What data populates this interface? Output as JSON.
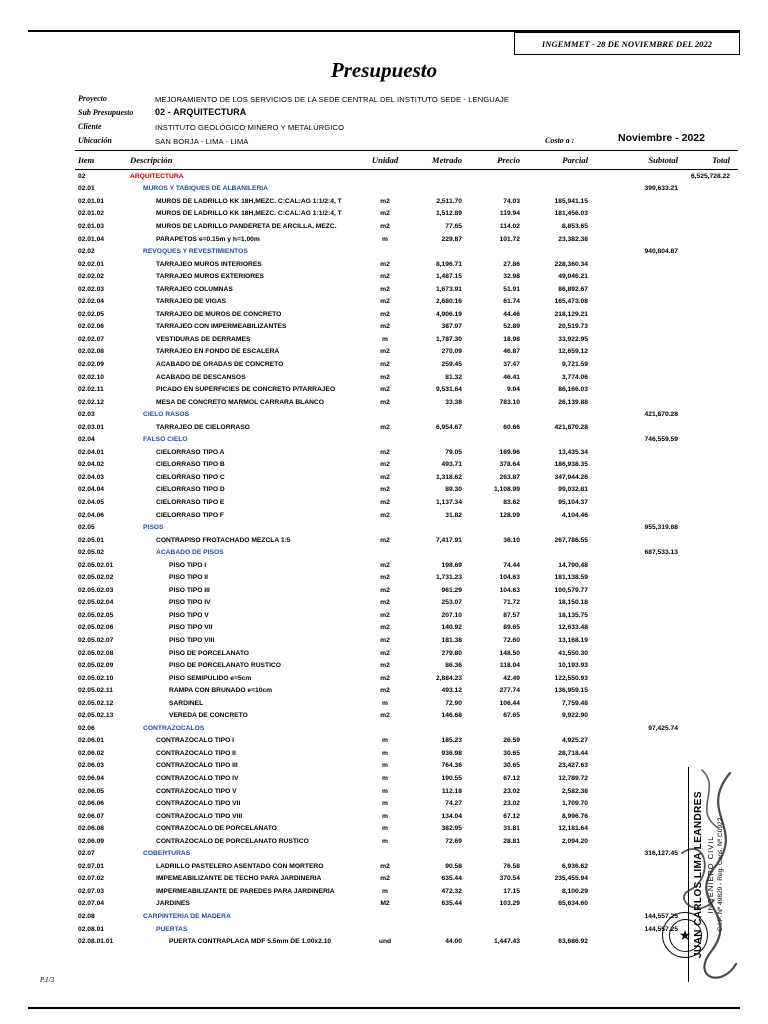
{
  "colors": {
    "red": "#c00000",
    "blue": "#1f4e9c"
  },
  "page": {
    "header_right": "INGEMMET - 28 DE NOVIEMBRE DEL 2022",
    "title": "Presupuesto",
    "footer_page": "P.1/3"
  },
  "meta": {
    "labels": {
      "proyecto": "Proyecto",
      "sub": "Sub Presupuesto",
      "cliente": "Cliente",
      "ubicacion": "Ubicación",
      "costo": "Costo a :"
    },
    "proyecto": "MEJORAMIENTO DE LOS SERVICIOS DE LA SEDE CENTRAL DEL INSTITUTO SEDE - LENGUAJE",
    "sub_presupuesto": "02 - ARQUITECTURA",
    "cliente": "INSTITUTO GEOLÓGICO MINERO Y METALÚRGICO",
    "ubicacion": "SAN BORJA - LIMA - LIMA",
    "costo_valor": "Noviembre - 2022"
  },
  "stamp": {
    "name": "JUAN CARLOS LIMA LEANDRES",
    "title": "INGENIERO CIVIL",
    "reg": "C.I.P. Nº 49829 - Reg. Cons. Nº C0922",
    "seal_star": "★"
  },
  "table": {
    "headers": [
      "Item",
      "Descripción",
      "Unidad",
      "Metrado",
      "Precio",
      "Parcial",
      "Subtotal",
      "Total"
    ],
    "rows": [
      {
        "item": "02",
        "desc": "ARQUITECTURA",
        "t": "t",
        "tot": "6,525,728.22"
      },
      {
        "item": "02.01",
        "desc": "MUROS Y TABIQUES DE ALBAÑILERIA",
        "t": "s",
        "sub": "399,633.21"
      },
      {
        "item": "02.01.01",
        "desc": "MUROS DE LADRILLO KK 18H,MEZC. C:CAL:AG 1:1/2:4, T",
        "und": "m2",
        "met": "2,511.70",
        "pre": "74.03",
        "par": "185,941.15",
        "t": "i"
      },
      {
        "item": "02.01.02",
        "desc": "MUROS DE LADRILLO KK 18H,MEZC. C:CAL:AG 1:1/2:4, T",
        "und": "m2",
        "met": "1,512.89",
        "pre": "119.94",
        "par": "181,456.03",
        "t": "i"
      },
      {
        "item": "02.01.03",
        "desc": "MUROS DE LADRILLO PANDERETA DE ARCILLA, MEZC.",
        "und": "m2",
        "met": "77.65",
        "pre": "114.02",
        "par": "8,853.65",
        "t": "i"
      },
      {
        "item": "02.01.04",
        "desc": "PARAPETOS e=0.15m y h=1.00m",
        "und": "m",
        "met": "229.87",
        "pre": "101.72",
        "par": "23,382.38",
        "t": "i"
      },
      {
        "item": "02.02",
        "desc": "REVOQUES Y REVESTIMIENTOS",
        "t": "s",
        "sub": "940,804.87"
      },
      {
        "item": "02.02.01",
        "desc": "TARRAJEO MUROS INTERIORES",
        "und": "m2",
        "met": "8,196.71",
        "pre": "27.86",
        "par": "228,360.34",
        "t": "i"
      },
      {
        "item": "02.02.02",
        "desc": "TARRAJEO MUROS EXTERIORES",
        "und": "m2",
        "met": "1,487.15",
        "pre": "32.98",
        "par": "49,046.21",
        "t": "i"
      },
      {
        "item": "02.02.03",
        "desc": "TARRAJEO COLUMNAS",
        "und": "m2",
        "met": "1,673.91",
        "pre": "51.91",
        "par": "86,892.67",
        "t": "i"
      },
      {
        "item": "02.02.04",
        "desc": "TARRAJEO DE VIGAS",
        "und": "m2",
        "met": "2,680.16",
        "pre": "61.74",
        "par": "165,473.08",
        "t": "i"
      },
      {
        "item": "02.02.05",
        "desc": "TARRAJEO DE MUROS DE CONCRETO",
        "und": "m2",
        "met": "4,906.19",
        "pre": "44.46",
        "par": "218,129.21",
        "t": "i"
      },
      {
        "item": "02.02.06",
        "desc": "TARRAJEO CON IMPERMEABILIZANTES",
        "und": "m2",
        "met": "387.97",
        "pre": "52.89",
        "par": "20,519.73",
        "t": "i"
      },
      {
        "item": "02.02.07",
        "desc": "VESTIDURAS DE DERRAMES",
        "und": "m",
        "met": "1,787.30",
        "pre": "18.98",
        "par": "33,922.95",
        "t": "i"
      },
      {
        "item": "02.02.08",
        "desc": "TARRAJEO EN FONDO DE ESCALERA",
        "und": "m2",
        "met": "270.09",
        "pre": "46.87",
        "par": "12,659.12",
        "t": "i"
      },
      {
        "item": "02.02.09",
        "desc": "ACABADO DE GRADAS DE CONCRETO",
        "und": "m2",
        "met": "259.45",
        "pre": "37.47",
        "par": "9,721.59",
        "t": "i"
      },
      {
        "item": "02.02.10",
        "desc": "ACABADO DE DESCANSOS",
        "und": "m2",
        "met": "81.32",
        "pre": "46.41",
        "par": "3,774.06",
        "t": "i"
      },
      {
        "item": "02.02.11",
        "desc": "PICADO EN SUPERFICIES DE CONCRETO P/TARRAJEO",
        "und": "m2",
        "met": "9,531.64",
        "pre": "9.04",
        "par": "86,166.03",
        "t": "i"
      },
      {
        "item": "02.02.12",
        "desc": "MESA DE CONCRETO MARMOL CARRARA BLANCO",
        "und": "m2",
        "met": "33.38",
        "pre": "783.10",
        "par": "26,139.88",
        "t": "i"
      },
      {
        "item": "02.03",
        "desc": "CIELO RASOS",
        "t": "s",
        "sub": "421,870.28"
      },
      {
        "item": "02.03.01",
        "desc": "TARRAJEO DE CIELORRASO",
        "und": "m2",
        "met": "6,954.67",
        "pre": "60.66",
        "par": "421,870.28",
        "t": "i"
      },
      {
        "item": "02.04",
        "desc": "FALSO CIELO",
        "t": "s",
        "sub": "746,559.59"
      },
      {
        "item": "02.04.01",
        "desc": "CIELORRASO TIPO A",
        "und": "m2",
        "met": "79.05",
        "pre": "169.96",
        "par": "13,435.34",
        "t": "i"
      },
      {
        "item": "02.04.02",
        "desc": "CIELORRASO TIPO B",
        "und": "m2",
        "met": "493.71",
        "pre": "378.64",
        "par": "186,938.35",
        "t": "i"
      },
      {
        "item": "02.04.03",
        "desc": "CIELORRASO TIPO C",
        "und": "m2",
        "met": "1,318.62",
        "pre": "263.87",
        "par": "347,944.26",
        "t": "i"
      },
      {
        "item": "02.04.04",
        "desc": "CIELORRASO TIPO D",
        "und": "m2",
        "met": "89.30",
        "pre": "1,108.99",
        "par": "99,032.81",
        "t": "i"
      },
      {
        "item": "02.04.05",
        "desc": "CIELORRASO TIPO E",
        "und": "m2",
        "met": "1,137.34",
        "pre": "83.62",
        "par": "95,104.37",
        "t": "i"
      },
      {
        "item": "02.04.06",
        "desc": "CIELORRASO TIPO F",
        "und": "m2",
        "met": "31.82",
        "pre": "128.99",
        "par": "4,104.46",
        "t": "i"
      },
      {
        "item": "02.05",
        "desc": "PISOS",
        "t": "s",
        "sub": "955,319.68"
      },
      {
        "item": "02.05.01",
        "desc": "CONTRAPISO FROTACHADO MEZCLA 1:5",
        "und": "m2",
        "met": "7,417.91",
        "pre": "36.10",
        "par": "267,786.55",
        "t": "i"
      },
      {
        "item": "02.05.02",
        "desc": "ACABADO DE PISOS",
        "t": "s2",
        "sub": "687,533.13"
      },
      {
        "item": "02.05.02.01",
        "desc": "PISO TIPO I",
        "und": "m2",
        "met": "198.69",
        "pre": "74.44",
        "par": "14,790.48",
        "t": "i2"
      },
      {
        "item": "02.05.02.02",
        "desc": "PISO TIPO II",
        "und": "m2",
        "met": "1,731.23",
        "pre": "104.63",
        "par": "181,138.59",
        "t": "i2"
      },
      {
        "item": "02.05.02.03",
        "desc": "PISO TIPO III",
        "und": "m2",
        "met": "961.29",
        "pre": "104.63",
        "par": "100,579.77",
        "t": "i2"
      },
      {
        "item": "02.05.02.04",
        "desc": "PISO TIPO IV",
        "und": "m2",
        "met": "253.07",
        "pre": "71.72",
        "par": "18,150.18",
        "t": "i2"
      },
      {
        "item": "02.05.02.05",
        "desc": "PISO TIPO V",
        "und": "m2",
        "met": "207.10",
        "pre": "87.57",
        "par": "18,135.75",
        "t": "i2"
      },
      {
        "item": "02.05.02.06",
        "desc": "PISO TIPO VII",
        "und": "m2",
        "met": "140.92",
        "pre": "89.65",
        "par": "12,633.48",
        "t": "i2"
      },
      {
        "item": "02.05.02.07",
        "desc": "PISO TIPO VIII",
        "und": "m2",
        "met": "181.38",
        "pre": "72.60",
        "par": "13,168.19",
        "t": "i2"
      },
      {
        "item": "02.05.02.08",
        "desc": "PISO DE PORCELANATO",
        "und": "m2",
        "met": "279.80",
        "pre": "148.50",
        "par": "41,550.30",
        "t": "i2"
      },
      {
        "item": "02.05.02.09",
        "desc": "PISO DE PORCELANATO RÚSTICO",
        "und": "m2",
        "met": "86.36",
        "pre": "118.04",
        "par": "10,193.93",
        "t": "i2"
      },
      {
        "item": "02.05.02.10",
        "desc": "PISO SEMIPULIDO e=5cm",
        "und": "m2",
        "met": "2,884.23",
        "pre": "42.49",
        "par": "122,550.93",
        "t": "i2"
      },
      {
        "item": "02.05.02.11",
        "desc": "RAMPA CON BRUÑADO e=10cm",
        "und": "m2",
        "met": "493.12",
        "pre": "277.74",
        "par": "136,959.15",
        "t": "i2"
      },
      {
        "item": "02.05.02.12",
        "desc": "SARDINEL",
        "und": "m",
        "met": "72.90",
        "pre": "106.44",
        "par": "7,759.48",
        "t": "i2"
      },
      {
        "item": "02.05.02.13",
        "desc": "VEREDA DE CONCRETO",
        "und": "m2",
        "met": "146.68",
        "pre": "67.65",
        "par": "9,922.90",
        "t": "i2"
      },
      {
        "item": "02.06",
        "desc": "CONTRAZOCALOS",
        "t": "s",
        "sub": "97,425.74"
      },
      {
        "item": "02.06.01",
        "desc": "CONTRAZOCALO TIPO I",
        "und": "m",
        "met": "185.23",
        "pre": "26.59",
        "par": "4,925.27",
        "t": "i"
      },
      {
        "item": "02.06.02",
        "desc": "CONTRAZOCALO TIPO II",
        "und": "m",
        "met": "936.98",
        "pre": "30.65",
        "par": "28,718.44",
        "t": "i"
      },
      {
        "item": "02.06.03",
        "desc": "CONTRAZOCALO TIPO III",
        "und": "m",
        "met": "764.36",
        "pre": "30.65",
        "par": "23,427.63",
        "t": "i"
      },
      {
        "item": "02.06.04",
        "desc": "CONTRAZOCALO TIPO IV",
        "und": "m",
        "met": "190.55",
        "pre": "67.12",
        "par": "12,789.72",
        "t": "i"
      },
      {
        "item": "02.06.05",
        "desc": "CONTRAZOCALO TIPO V",
        "und": "m",
        "met": "112.18",
        "pre": "23.02",
        "par": "2,582.38",
        "t": "i"
      },
      {
        "item": "02.06.06",
        "desc": "CONTRAZOCALO TIPO VII",
        "und": "m",
        "met": "74.27",
        "pre": "23.02",
        "par": "1,709.70",
        "t": "i"
      },
      {
        "item": "02.06.07",
        "desc": "CONTRAZOCALO TIPO VIII",
        "und": "m",
        "met": "134.04",
        "pre": "67.12",
        "par": "8,996.76",
        "t": "i"
      },
      {
        "item": "02.06.08",
        "desc": "CONTRAZOCALO DE PORCELANATO",
        "und": "m",
        "met": "382.95",
        "pre": "31.81",
        "par": "12,181.64",
        "t": "i"
      },
      {
        "item": "02.06.09",
        "desc": "CONTRAZOCALO DE PORCELANATO RUSTICO",
        "und": "m",
        "met": "72.69",
        "pre": "28.81",
        "par": "2,094.20",
        "t": "i"
      },
      {
        "item": "02.07",
        "desc": "COBERTURAS",
        "t": "s",
        "sub": "316,127.45"
      },
      {
        "item": "02.07.01",
        "desc": "LADRILLO PASTELERO ASENTADO CON MORTERO",
        "und": "m2",
        "met": "90.58",
        "pre": "76.58",
        "par": "6,936.62",
        "t": "i"
      },
      {
        "item": "02.07.02",
        "desc": "IMPEMEABILIZANTE DE TECHO PARA JARDINERIA",
        "und": "m2",
        "met": "635.44",
        "pre": "370.54",
        "par": "235,455.94",
        "t": "i"
      },
      {
        "item": "02.07.03",
        "desc": "IMPERMEABILIZANTE DE PAREDES PARA JARDINERÍA",
        "und": "m",
        "met": "472.32",
        "pre": "17.15",
        "par": "8,100.29",
        "t": "i"
      },
      {
        "item": "02.07.04",
        "desc": "JARDINES",
        "und": "M2",
        "met": "635.44",
        "pre": "103.29",
        "par": "65,634.60",
        "t": "i"
      },
      {
        "item": "02.08",
        "desc": "CARPINTERIA DE MADERA",
        "t": "s",
        "sub": "144,557.25"
      },
      {
        "item": "02.08.01",
        "desc": "PUERTAS",
        "t": "s2",
        "sub": "144,557.25"
      },
      {
        "item": "02.08.01.01",
        "desc": "PUERTA CONTRAPLACA MDF 5.5mm DE 1.00x2.10",
        "und": "und",
        "met": "44.00",
        "pre": "1,447.43",
        "par": "63,686.92",
        "t": "i2"
      }
    ]
  }
}
